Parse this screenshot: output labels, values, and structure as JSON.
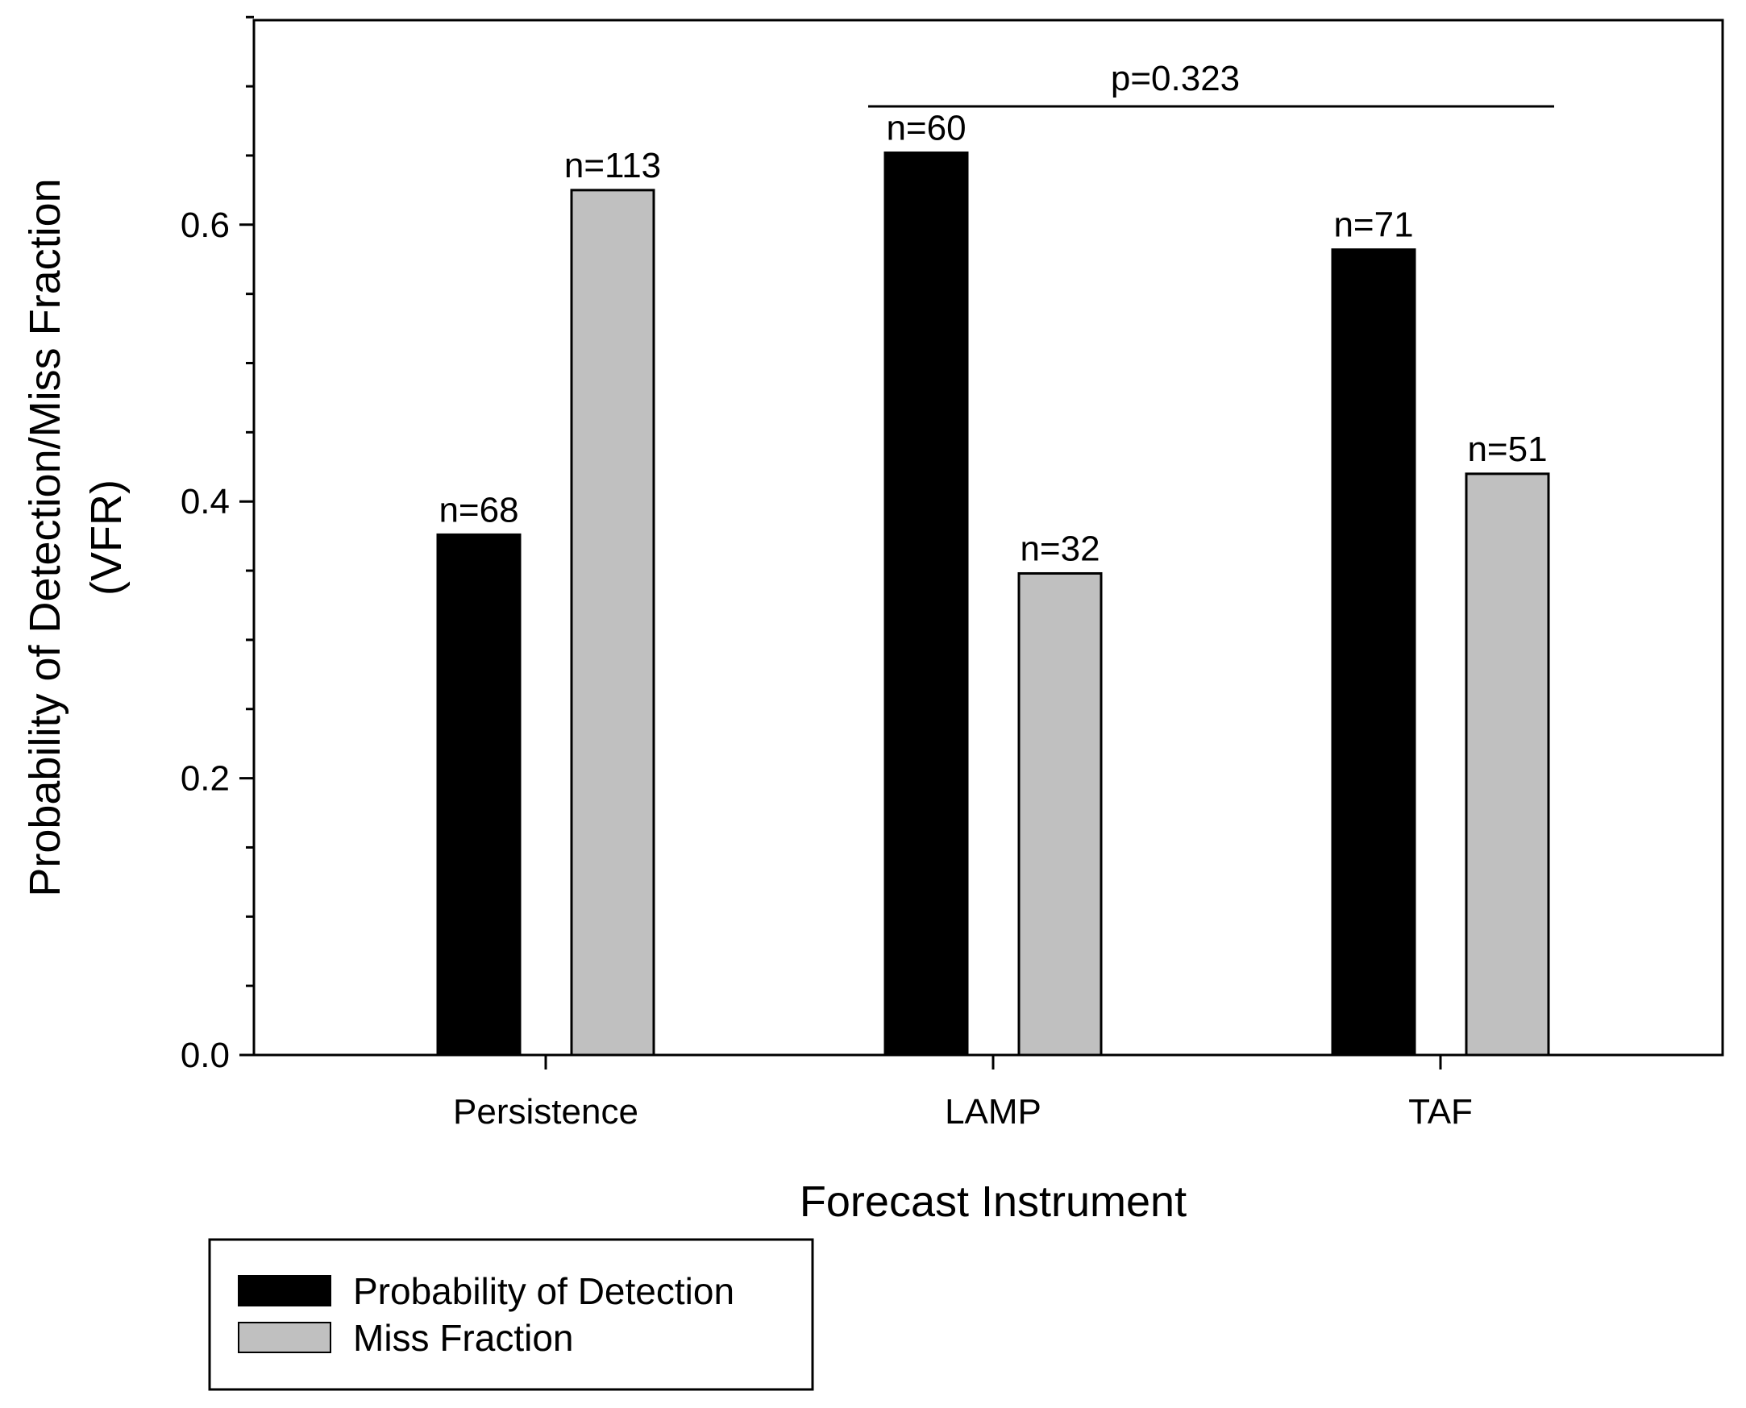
{
  "chart_data": {
    "type": "bar",
    "xlabel": "Forecast Instrument",
    "ylabel_line1": "Probability of Detection/Miss Fraction",
    "ylabel_line2": "(VFR)",
    "categories": [
      "Persistence",
      "LAMP",
      "TAF"
    ],
    "series": [
      {
        "name": "Probability of Detection",
        "color": "#000000",
        "values": [
          0.376,
          0.652,
          0.582
        ],
        "n_labels": [
          "n=68",
          "n=60",
          "n=71"
        ]
      },
      {
        "name": "Miss Fraction",
        "color": "#c0c0c0",
        "values": [
          0.625,
          0.348,
          0.42
        ],
        "n_labels": [
          "n=113",
          "n=32",
          "n=51"
        ]
      }
    ],
    "ylim": [
      0,
      0.75
    ],
    "yticks": [
      "0.0",
      "0.2",
      "0.4",
      "0.6"
    ],
    "annotation": "p=0.323",
    "legend_position": "bottom-left"
  }
}
